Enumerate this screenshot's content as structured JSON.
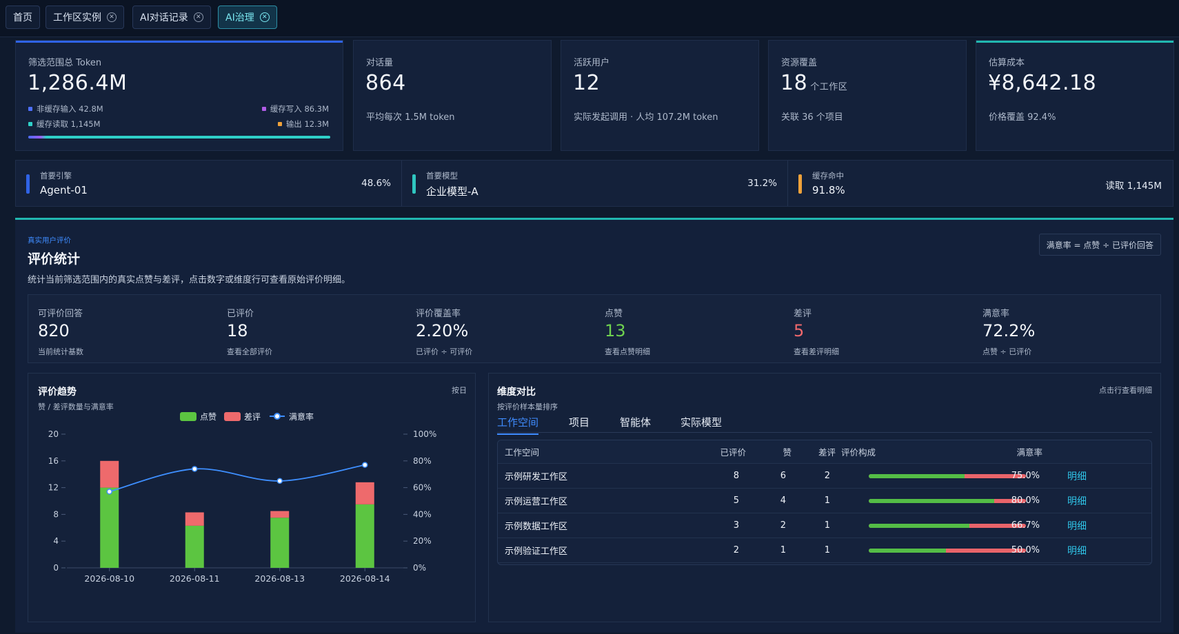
{
  "tabs": [
    {
      "label": "首页",
      "closable": false,
      "active": false
    },
    {
      "label": "工作区实例",
      "closable": true,
      "active": false
    },
    {
      "label": "AI对话记录",
      "closable": true,
      "active": false
    },
    {
      "label": "AI治理",
      "closable": true,
      "active": true
    }
  ],
  "cards": {
    "token": {
      "label": "筛选范围总 Token",
      "value": "1,286.4M",
      "legend": {
        "uncached_input": "非缓存输入 42.8M",
        "cache_write": "缓存写入 86.3M",
        "cache_read": "缓存读取 1,145M",
        "output": "输出 12.3M"
      }
    },
    "conversations": {
      "label": "对话量",
      "value": "864",
      "sub": "平均每次 1.5M token"
    },
    "active_users": {
      "label": "活跃用户",
      "value": "12",
      "sub": "实际发起调用 · 人均 107.2M token"
    },
    "resources": {
      "label": "资源覆盖",
      "value": "18",
      "unit": "个工作区",
      "sub": "关联 36 个项目"
    },
    "cost": {
      "label": "估算成本",
      "value": "¥8,642.18",
      "sub": "价格覆盖 92.4%"
    }
  },
  "strip": {
    "engine": {
      "key": "首要引擎",
      "value": "Agent-01",
      "right": "48.6%"
    },
    "model": {
      "key": "首要模型",
      "value": "企业模型-A",
      "right": "31.2%"
    },
    "cache": {
      "key": "缓存命中",
      "value": "91.8%",
      "right": "读取 1,145M"
    }
  },
  "rating": {
    "eyebrow": "真实用户评价",
    "title": "评价统计",
    "desc": "统计当前筛选范围内的真实点赞与差评，点击数字或维度行可查看原始评价明细。",
    "formula": "满意率 = 点赞 ÷ 已评价回答",
    "metrics": [
      {
        "key": "可评价回答",
        "value": "820",
        "hint": "当前统计基数"
      },
      {
        "key": "已评价",
        "value": "18",
        "hint": "查看全部评价"
      },
      {
        "key": "评价覆盖率",
        "value": "2.20%",
        "hint": "已评价 ÷ 可评价"
      },
      {
        "key": "点赞",
        "value": "13",
        "hint": "查看点赞明细"
      },
      {
        "key": "差评",
        "value": "5",
        "hint": "查看差评明细"
      },
      {
        "key": "满意率",
        "value": "72.2%",
        "hint": "点赞 ÷ 已评价"
      }
    ]
  },
  "trend": {
    "title": "评价趋势",
    "subtitle": "赞 / 差评数量与满意率",
    "toggle": "按日"
  },
  "chart_data": {
    "type": "bar",
    "categories": [
      "2026-08-10",
      "2026-08-11",
      "2026-08-13",
      "2026-08-14"
    ],
    "series": [
      {
        "name": "点赞",
        "values": [
          12,
          6.3,
          7.5,
          9.5
        ],
        "color": "#5cc541"
      },
      {
        "name": "差评",
        "values": [
          4,
          2,
          1,
          3.3
        ],
        "color": "#ee6a6c"
      },
      {
        "name": "满意率",
        "values": [
          57,
          74,
          65,
          77
        ],
        "color": "#3e8fff",
        "axis": "right",
        "type": "line"
      }
    ],
    "ylim": [
      0,
      20
    ],
    "yticks": [
      "0",
      "4",
      "8",
      "12",
      "16",
      "20"
    ],
    "y2lim": [
      0,
      100
    ],
    "y2ticks": [
      "0%",
      "20%",
      "40%",
      "60%",
      "80%",
      "100%"
    ],
    "legend_position": "top-center",
    "grid": false
  },
  "dims": {
    "title": "维度对比",
    "subtitle": "按评价样本量排序",
    "hint": "点击行查看明细",
    "tabs": [
      "工作空间",
      "项目",
      "智能体",
      "实际模型"
    ],
    "columns": [
      "工作空间",
      "已评价",
      "赞",
      "差评",
      "评价构成",
      "满意率"
    ],
    "rows": [
      {
        "name": "示例研发工作区",
        "rated": "8",
        "likes": "6",
        "dislikes": "2",
        "rate": "75.0%",
        "link": "明细",
        "ratio": 0.61
      },
      {
        "name": "示例运营工作区",
        "rated": "5",
        "likes": "4",
        "dislikes": "1",
        "rate": "80.0%",
        "link": "明细",
        "ratio": 0.8
      },
      {
        "name": "示例数据工作区",
        "rated": "3",
        "likes": "2",
        "dislikes": "1",
        "rate": "66.7%",
        "link": "明细",
        "ratio": 0.64
      },
      {
        "name": "示例验证工作区",
        "rated": "2",
        "likes": "1",
        "dislikes": "1",
        "rate": "50.0%",
        "link": "明细",
        "ratio": 0.49
      }
    ]
  }
}
